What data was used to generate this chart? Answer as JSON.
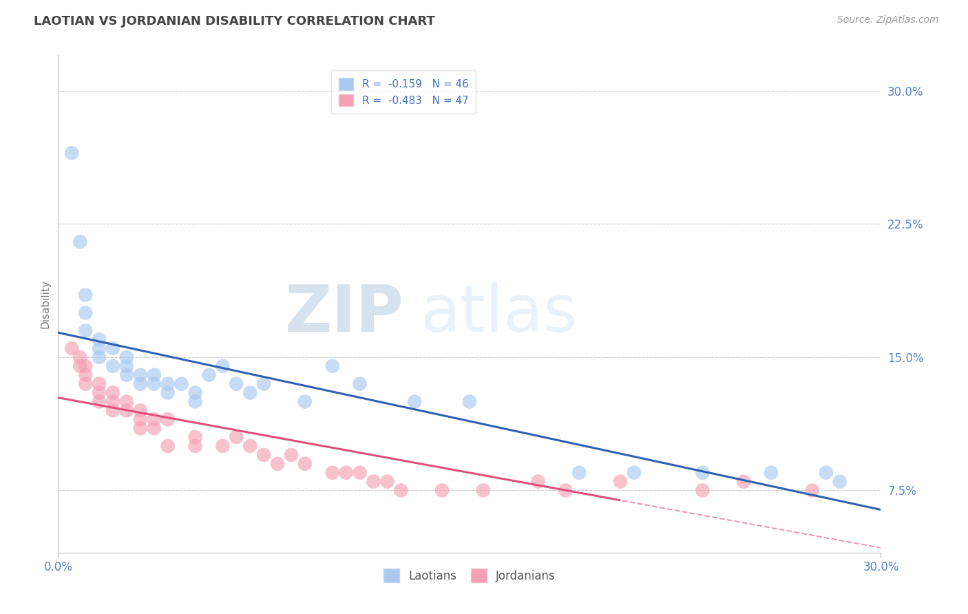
{
  "title": "LAOTIAN VS JORDANIAN DISABILITY CORRELATION CHART",
  "source": "Source: ZipAtlas.com",
  "xlabel_laotian": "Laotians",
  "xlabel_jordanian": "Jordanians",
  "ylabel": "Disability",
  "xmin": 0.0,
  "xmax": 0.3,
  "ymin": 0.04,
  "ymax": 0.32,
  "yticks": [
    0.075,
    0.15,
    0.225,
    0.3
  ],
  "ytick_labels": [
    "7.5%",
    "15.0%",
    "22.5%",
    "30.0%"
  ],
  "xtick_labels": [
    "0.0%",
    "30.0%"
  ],
  "legend_blue_r": "R =  -0.159",
  "legend_blue_n": "N = 46",
  "legend_pink_r": "R =  -0.483",
  "legend_pink_n": "N = 47",
  "blue_color": "#A8C8F0",
  "pink_color": "#F4A0B5",
  "blue_line_color": "#3060B0",
  "pink_line_color": "#E0507A",
  "watermark_zip": "ZIP",
  "watermark_atlas": "atlas",
  "blue_scatter_x": [
    0.005,
    0.008,
    0.01,
    0.01,
    0.01,
    0.015,
    0.015,
    0.015,
    0.02,
    0.02,
    0.025,
    0.025,
    0.025,
    0.03,
    0.03,
    0.035,
    0.035,
    0.04,
    0.04,
    0.045,
    0.05,
    0.05,
    0.055,
    0.06,
    0.065,
    0.07,
    0.075,
    0.09,
    0.1,
    0.11,
    0.13,
    0.15,
    0.19,
    0.21,
    0.235,
    0.26,
    0.28,
    0.285
  ],
  "blue_scatter_y": [
    0.265,
    0.215,
    0.185,
    0.175,
    0.165,
    0.16,
    0.155,
    0.15,
    0.155,
    0.145,
    0.15,
    0.145,
    0.14,
    0.14,
    0.135,
    0.14,
    0.135,
    0.135,
    0.13,
    0.135,
    0.13,
    0.125,
    0.14,
    0.145,
    0.135,
    0.13,
    0.135,
    0.125,
    0.145,
    0.135,
    0.125,
    0.125,
    0.085,
    0.085,
    0.085,
    0.085,
    0.085,
    0.08
  ],
  "pink_scatter_x": [
    0.005,
    0.008,
    0.008,
    0.01,
    0.01,
    0.01,
    0.015,
    0.015,
    0.015,
    0.02,
    0.02,
    0.02,
    0.025,
    0.025,
    0.03,
    0.03,
    0.03,
    0.035,
    0.035,
    0.04,
    0.04,
    0.05,
    0.05,
    0.06,
    0.065,
    0.07,
    0.075,
    0.08,
    0.085,
    0.09,
    0.1,
    0.105,
    0.11,
    0.115,
    0.12,
    0.125,
    0.14,
    0.155,
    0.175,
    0.185,
    0.205,
    0.235,
    0.25,
    0.275
  ],
  "pink_scatter_y": [
    0.155,
    0.15,
    0.145,
    0.145,
    0.14,
    0.135,
    0.135,
    0.13,
    0.125,
    0.13,
    0.125,
    0.12,
    0.125,
    0.12,
    0.12,
    0.115,
    0.11,
    0.115,
    0.11,
    0.115,
    0.1,
    0.105,
    0.1,
    0.1,
    0.105,
    0.1,
    0.095,
    0.09,
    0.095,
    0.09,
    0.085,
    0.085,
    0.085,
    0.08,
    0.08,
    0.075,
    0.075,
    0.075,
    0.08,
    0.075,
    0.08,
    0.075,
    0.08,
    0.075
  ]
}
